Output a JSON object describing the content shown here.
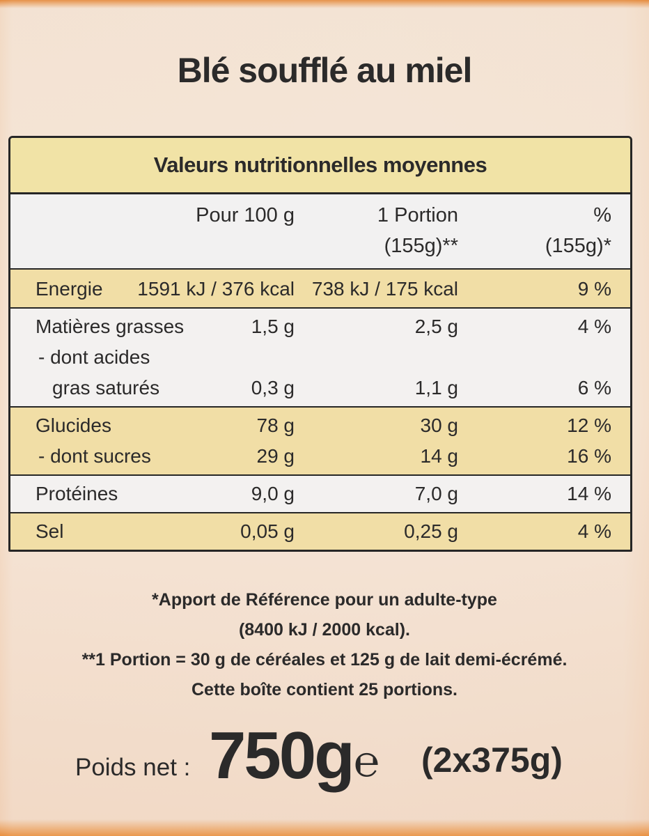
{
  "title": "Blé soufflé au miel",
  "table": {
    "caption": "Valeurs nutritionnelles moyennes",
    "header": {
      "per100": [
        "Pour 100 g"
      ],
      "portion": [
        "1 Portion",
        "(155g)**"
      ],
      "percent": [
        "%",
        "(155g)*"
      ]
    },
    "groups": [
      {
        "rows": [
          {
            "label": [
              "Energie"
            ],
            "per100": "1591 kJ / 376 kcal",
            "portion": "738 kJ / 175 kcal",
            "percent": "9 %"
          }
        ]
      },
      {
        "rows": [
          {
            "label": [
              "Matières grasses"
            ],
            "per100": "1,5 g",
            "portion": "2,5 g",
            "percent": "4 %"
          },
          {
            "label": [
              "- dont acides",
              "gras saturés"
            ],
            "per100": "0,3 g",
            "portion": "1,1 g",
            "percent": "6 %"
          }
        ]
      },
      {
        "rows": [
          {
            "label": [
              "Glucides"
            ],
            "per100": "78 g",
            "portion": "30 g",
            "percent": "12 %"
          },
          {
            "label": [
              "- dont sucres"
            ],
            "per100": "29 g",
            "portion": "14 g",
            "percent": "16 %"
          }
        ]
      },
      {
        "rows": [
          {
            "label": [
              "Protéines"
            ],
            "per100": "9,0 g",
            "portion": "7,0 g",
            "percent": "14 %"
          }
        ]
      },
      {
        "rows": [
          {
            "label": [
              "Sel"
            ],
            "per100": "0,05 g",
            "portion": "0,25 g",
            "percent": "4 %"
          }
        ]
      }
    ]
  },
  "footnotes": [
    "*Apport de Référence pour un adulte-type",
    "(8400 kJ / 2000 kcal).",
    "**1 Portion = 30 g de céréales et 125 g de lait demi-écrémé.",
    "Cette boîte contient 25 portions."
  ],
  "net_weight": {
    "label": "Poids net :",
    "value": "750g",
    "symbol": "℮",
    "detail": "(2x375g)"
  }
}
